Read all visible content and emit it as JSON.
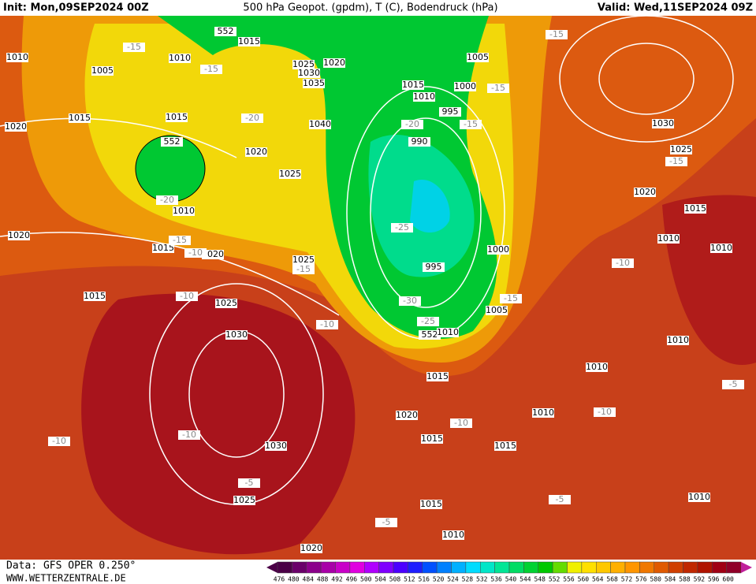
{
  "header": {
    "init": "Init: Mon,09SEP2024 00Z",
    "title": "500 hPa Geopot. (gpdm), T (C), Bodendruck (hPa)",
    "valid": "Valid: Wed,11SEP2024 09Z"
  },
  "footer": {
    "source": "Data: GFS OPER 0.250°",
    "site": "WWW.WETTERZENTRALE.DE"
  },
  "scale": {
    "labels": [
      476,
      480,
      484,
      488,
      492,
      496,
      500,
      504,
      508,
      512,
      516,
      520,
      524,
      528,
      532,
      536,
      540,
      544,
      548,
      552,
      556,
      560,
      564,
      568,
      572,
      576,
      580,
      584,
      588,
      592,
      596,
      600
    ],
    "colors": [
      "#4b0047",
      "#6a006a",
      "#8b008b",
      "#a800a8",
      "#c800c8",
      "#e000e0",
      "#b000ff",
      "#7f00ff",
      "#4b00ff",
      "#1e1eff",
      "#0050ff",
      "#0080ff",
      "#00b0ff",
      "#00dcff",
      "#00e6c8",
      "#00e696",
      "#00dc64",
      "#00d232",
      "#00c800",
      "#64dc00",
      "#f0f000",
      "#ffe000",
      "#ffc800",
      "#ffb000",
      "#ff9600",
      "#f07800",
      "#e05a00",
      "#d04000",
      "#c02800",
      "#b01400",
      "#a00014",
      "#900028"
    ]
  },
  "map_labels": [
    "1010",
    "1010",
    "1005",
    "1015",
    "552",
    "1025",
    "1030",
    "1035",
    "1020",
    "1015",
    "1015",
    "1020",
    "552",
    "1020",
    "1040",
    "1025",
    "1010",
    "1020",
    "1015",
    "1020",
    "1025",
    "-15",
    "1015",
    "1025",
    "1030",
    "-10",
    "1030",
    "-5",
    "1025",
    "1020",
    "-10",
    "-15",
    "-15",
    "-20",
    "-20",
    "-15",
    "-10",
    "-10",
    "-10",
    "1015",
    "1010",
    "995",
    "990",
    "-20",
    "-25",
    "995",
    "-30",
    "-25",
    "552",
    "1010",
    "1000",
    "-15",
    "1005",
    "1005",
    "1000",
    "-15",
    "-15",
    "-15",
    "1030",
    "1025",
    "-15",
    "1020",
    "1015",
    "1010",
    "1010",
    "-10",
    "1010",
    "1010",
    "-5",
    "-10",
    "1010",
    "1015",
    "1020",
    "-10",
    "1015",
    "1015",
    "-5",
    "1015",
    "-5",
    "1010",
    "1010"
  ]
}
